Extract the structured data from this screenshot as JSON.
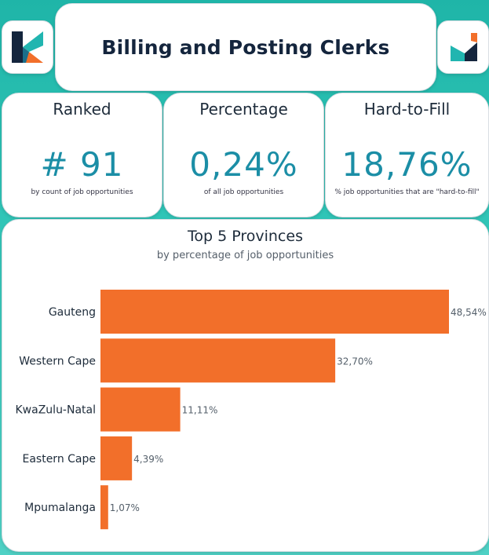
{
  "header": {
    "title": "Billing and Posting Clerks"
  },
  "kpis": [
    {
      "label": "Ranked",
      "value": "# 91",
      "sub": "by count of job opportunities"
    },
    {
      "label": "Percentage",
      "value": "0,24%",
      "sub": "of all job opportunities"
    },
    {
      "label": "Hard-to-Fill",
      "value": "18,76%",
      "sub": "% job opportunities that are \"hard-to-fill\""
    }
  ],
  "chart": {
    "title": "Top 5 Provinces",
    "subtitle": "by percentage of job opportunities"
  },
  "chart_data": {
    "type": "bar",
    "orientation": "horizontal",
    "title": "Top 5 Provinces",
    "subtitle": "by percentage of job opportunities",
    "categories": [
      "Gauteng",
      "Western Cape",
      "KwaZulu-Natal",
      "Eastern Cape",
      "Mpumalanga"
    ],
    "values": [
      48.54,
      32.7,
      11.11,
      4.39,
      1.07
    ],
    "value_labels": [
      "48,54%",
      "32,70%",
      "11,11%",
      "4,39%",
      "1,07%"
    ],
    "bar_color": "#f26f2a",
    "grid": false
  },
  "colors": {
    "accent": "#1b8ea6",
    "bar": "#f26f2a",
    "title": "#14253d",
    "logo_teal": "#21b5b0",
    "logo_navy": "#14253d",
    "logo_orange": "#f26f2a"
  }
}
